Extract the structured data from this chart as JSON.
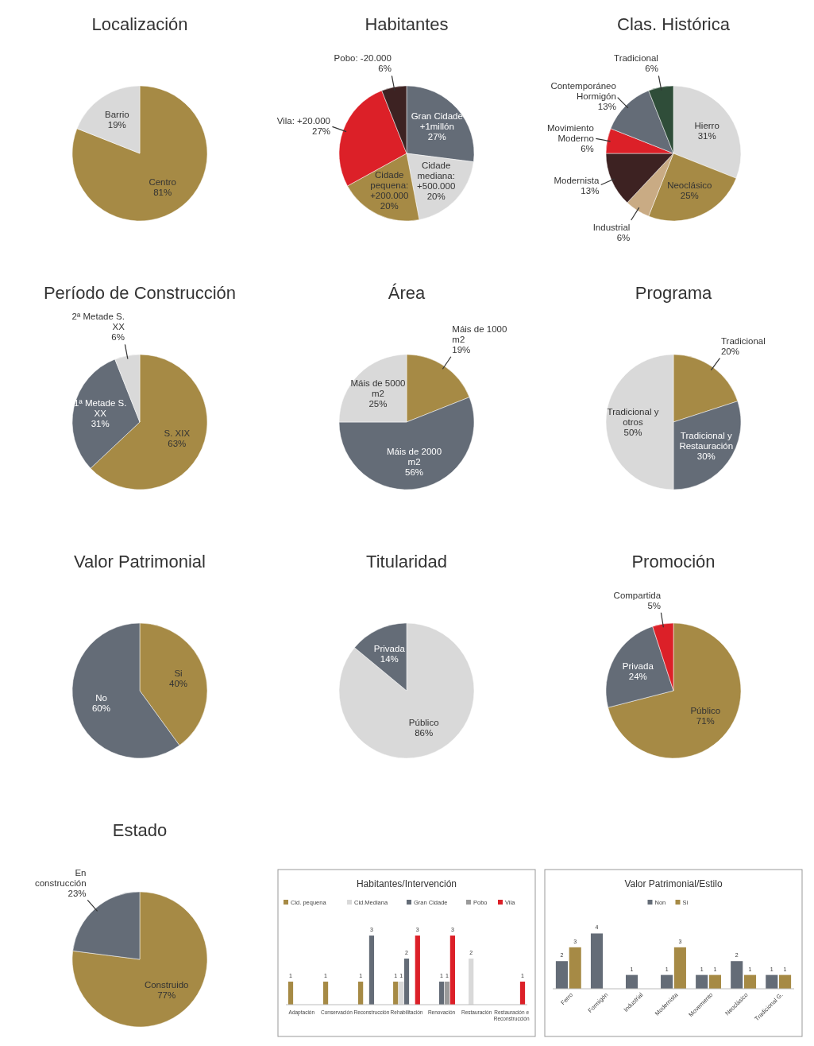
{
  "chart_data": [
    {
      "type": "pie",
      "title": "Localización",
      "categories": [
        "Centro",
        "Barrio"
      ],
      "values": [
        81,
        19
      ],
      "colors": [
        "#a68a45",
        "#d9d9d9"
      ],
      "value_labels": [
        "81%",
        "19%"
      ]
    },
    {
      "type": "pie",
      "title": "Habitantes",
      "categories": [
        "Gran Cidade +1millón",
        "Cidade mediana: +500.000",
        "Cidade pequena: +200.000",
        "Vila: +20.000",
        "Pobo: -20.000"
      ],
      "values": [
        27,
        20,
        20,
        27,
        6
      ],
      "colors": [
        "#646c77",
        "#d9d9d9",
        "#a68a45",
        "#dc2028",
        "#3d2222"
      ],
      "value_labels": [
        "27%",
        "20%",
        "20%",
        "27%",
        "6%"
      ]
    },
    {
      "type": "pie",
      "title": "Clas. Histórica",
      "categories": [
        "Hierro",
        "Neoclásico",
        "Industrial",
        "Modernista",
        "Movimiento Moderno",
        "Contemporáneo Hormigón",
        "Tradicional"
      ],
      "values": [
        31,
        25,
        6,
        13,
        6,
        13,
        6
      ],
      "colors": [
        "#d9d9d9",
        "#a68a45",
        "#c9ab84",
        "#3d2222",
        "#dc2028",
        "#646c77",
        "#2f4d39"
      ],
      "value_labels": [
        "31%",
        "25%",
        "6%",
        "13%",
        "6%",
        "13%",
        "6%"
      ]
    },
    {
      "type": "pie",
      "title": "Período de Construcción",
      "categories": [
        "S. XIX",
        "1ª Metade S. XX",
        "2ª Metade S. XX"
      ],
      "values": [
        63,
        31,
        6
      ],
      "colors": [
        "#a68a45",
        "#646c77",
        "#d9d9d9"
      ],
      "value_labels": [
        "63%",
        "31%",
        "6%"
      ]
    },
    {
      "type": "pie",
      "title": "Área",
      "categories": [
        "Máis de 1000 m2",
        "Máis de 2000 m2",
        "Máis de 5000 m2"
      ],
      "values": [
        19,
        56,
        25
      ],
      "colors": [
        "#a68a45",
        "#646c77",
        "#d9d9d9"
      ],
      "value_labels": [
        "19%",
        "56%",
        "25%"
      ]
    },
    {
      "type": "pie",
      "title": "Programa",
      "categories": [
        "Tradicional",
        "Tradicional y Restauración",
        "Tradicional y otros"
      ],
      "values": [
        20,
        30,
        50
      ],
      "colors": [
        "#a68a45",
        "#646c77",
        "#d9d9d9"
      ],
      "value_labels": [
        "20%",
        "30%",
        "50%"
      ]
    },
    {
      "type": "pie",
      "title": "Valor Patrimonial",
      "categories": [
        "Si",
        "No"
      ],
      "values": [
        40,
        60
      ],
      "colors": [
        "#a68a45",
        "#646c77"
      ],
      "value_labels": [
        "40%",
        "60%"
      ]
    },
    {
      "type": "pie",
      "title": "Titularidad",
      "categories": [
        "Público",
        "Privada"
      ],
      "values": [
        86,
        14
      ],
      "colors": [
        "#d9d9d9",
        "#646c77"
      ],
      "value_labels": [
        "86%",
        "14%"
      ]
    },
    {
      "type": "pie",
      "title": "Promoción",
      "categories": [
        "Público",
        "Privada",
        "Compartida"
      ],
      "values": [
        71,
        24,
        5
      ],
      "colors": [
        "#a68a45",
        "#646c77",
        "#dc2028"
      ],
      "value_labels": [
        "71%",
        "24%",
        "5%"
      ]
    },
    {
      "type": "pie",
      "title": "Estado",
      "categories": [
        "Construido",
        "En construcción"
      ],
      "values": [
        77,
        23
      ],
      "colors": [
        "#a68a45",
        "#646c77"
      ],
      "value_labels": [
        "77%",
        "23%"
      ]
    },
    {
      "type": "bar",
      "title": "Habitantes/Intervención",
      "categories": [
        "Adaptación",
        "Conservación",
        "Reconstrucción",
        "Rehabilitación",
        "Renovación",
        "Restauración",
        "Restauración e Reconstrucción"
      ],
      "legend": "top",
      "data_labels": true,
      "series": [
        {
          "name": "Cid. pequena",
          "color": "#a68a45",
          "values": [
            1,
            1,
            1,
            1,
            null,
            null,
            null
          ]
        },
        {
          "name": "Cid.Mediana",
          "color": "#d9d9d9",
          "values": [
            null,
            null,
            null,
            1,
            null,
            2,
            null
          ]
        },
        {
          "name": "Gran Cidade",
          "color": "#646c77",
          "values": [
            null,
            null,
            3,
            2,
            1,
            null,
            null
          ]
        },
        {
          "name": "Pobo",
          "color": "#9a9a9a",
          "values": [
            null,
            null,
            null,
            null,
            1,
            null,
            null
          ]
        },
        {
          "name": "Vila",
          "color": "#dc2028",
          "values": [
            null,
            null,
            null,
            3,
            3,
            null,
            1
          ]
        }
      ]
    },
    {
      "type": "bar",
      "title": "Valor Patrimonial/Estilo",
      "categories": [
        "Ferro",
        "Formigón",
        "Industrial",
        "Modernista",
        "Movemento",
        "Neoclásico",
        "Tradicional G."
      ],
      "legend": "top",
      "data_labels": true,
      "series": [
        {
          "name": "Non",
          "color": "#646c77",
          "values": [
            2,
            4,
            1,
            1,
            1,
            2,
            1
          ]
        },
        {
          "name": "Si",
          "color": "#a68a45",
          "values": [
            3,
            null,
            null,
            3,
            1,
            1,
            1
          ]
        }
      ]
    }
  ]
}
